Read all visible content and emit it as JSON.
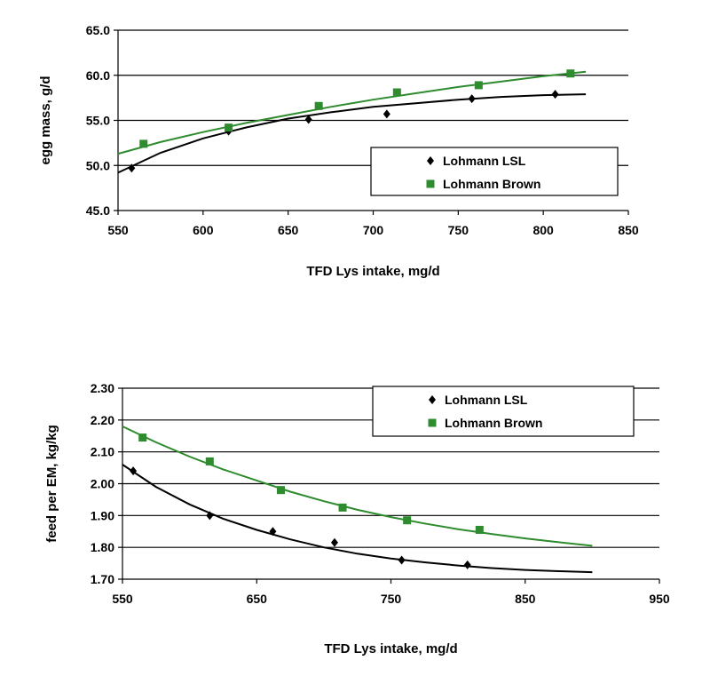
{
  "chart_data": [
    {
      "type": "scatter",
      "xlabel": "TFD Lys intake, mg/d",
      "ylabel": "egg mass, g/d",
      "xlim": [
        550,
        850
      ],
      "ylim": [
        45,
        65
      ],
      "x_ticks": [
        "550",
        "600",
        "650",
        "700",
        "750",
        "800",
        "850"
      ],
      "y_ticks": [
        "45.0",
        "50.0",
        "55.0",
        "60.0",
        "65.0"
      ],
      "grid": "horizontal",
      "legend_position": "bottom-right",
      "series": [
        {
          "name": "Lohmann LSL",
          "color": "#000000",
          "marker": "diamond",
          "points": [
            [
              558,
              49.7
            ],
            [
              615,
              53.8
            ],
            [
              662,
              55.1
            ],
            [
              708,
              55.7
            ],
            [
              758,
              57.4
            ],
            [
              807,
              57.9
            ]
          ],
          "fit": [
            [
              550,
              49.2
            ],
            [
              575,
              51.4
            ],
            [
              600,
              53.0
            ],
            [
              625,
              54.2
            ],
            [
              650,
              55.2
            ],
            [
              675,
              55.9
            ],
            [
              700,
              56.5
            ],
            [
              725,
              56.9
            ],
            [
              750,
              57.3
            ],
            [
              775,
              57.6
            ],
            [
              800,
              57.8
            ],
            [
              825,
              57.9
            ]
          ]
        },
        {
          "name": "Lohmann Brown",
          "color": "#2e8b2e",
          "marker": "square",
          "points": [
            [
              565,
              52.4
            ],
            [
              615,
              54.2
            ],
            [
              668,
              56.6
            ],
            [
              714,
              58.1
            ],
            [
              762,
              58.9
            ],
            [
              816,
              60.2
            ]
          ],
          "fit": [
            [
              550,
              51.3
            ],
            [
              575,
              52.6
            ],
            [
              600,
              53.7
            ],
            [
              625,
              54.7
            ],
            [
              650,
              55.6
            ],
            [
              675,
              56.5
            ],
            [
              700,
              57.3
            ],
            [
              725,
              58.0
            ],
            [
              750,
              58.7
            ],
            [
              775,
              59.3
            ],
            [
              800,
              59.9
            ],
            [
              825,
              60.4
            ]
          ]
        }
      ]
    },
    {
      "type": "scatter",
      "xlabel": "TFD Lys intake, mg/d",
      "ylabel": "feed per EM, kg/kg",
      "xlim": [
        550,
        950
      ],
      "ylim": [
        1.7,
        2.3
      ],
      "x_ticks": [
        "550",
        "650",
        "750",
        "850",
        "950"
      ],
      "y_ticks": [
        "1.70",
        "1.80",
        "1.90",
        "2.00",
        "2.10",
        "2.20",
        "2.30"
      ],
      "grid": "horizontal",
      "legend_position": "top-right",
      "series": [
        {
          "name": "Lohmann LSL",
          "color": "#000000",
          "marker": "diamond",
          "points": [
            [
              558,
              2.04
            ],
            [
              615,
              1.9
            ],
            [
              662,
              1.85
            ],
            [
              708,
              1.815
            ],
            [
              758,
              1.76
            ],
            [
              807,
              1.745
            ]
          ],
          "fit": [
            [
              550,
              2.06
            ],
            [
              575,
              1.99
            ],
            [
              600,
              1.935
            ],
            [
              625,
              1.89
            ],
            [
              650,
              1.855
            ],
            [
              675,
              1.825
            ],
            [
              700,
              1.8
            ],
            [
              725,
              1.78
            ],
            [
              750,
              1.765
            ],
            [
              775,
              1.753
            ],
            [
              800,
              1.743
            ],
            [
              825,
              1.735
            ],
            [
              850,
              1.729
            ],
            [
              875,
              1.725
            ],
            [
              900,
              1.722
            ]
          ]
        },
        {
          "name": "Lohmann Brown",
          "color": "#2e8b2e",
          "marker": "square",
          "points": [
            [
              565,
              2.145
            ],
            [
              615,
              2.07
            ],
            [
              668,
              1.98
            ],
            [
              714,
              1.925
            ],
            [
              762,
              1.885
            ],
            [
              816,
              1.855
            ]
          ],
          "fit": [
            [
              550,
              2.18
            ],
            [
              575,
              2.13
            ],
            [
              600,
              2.085
            ],
            [
              625,
              2.045
            ],
            [
              650,
              2.01
            ],
            [
              675,
              1.975
            ],
            [
              700,
              1.945
            ],
            [
              725,
              1.918
            ],
            [
              750,
              1.895
            ],
            [
              775,
              1.875
            ],
            [
              800,
              1.857
            ],
            [
              825,
              1.842
            ],
            [
              850,
              1.828
            ],
            [
              875,
              1.816
            ],
            [
              900,
              1.805
            ]
          ]
        }
      ]
    }
  ]
}
